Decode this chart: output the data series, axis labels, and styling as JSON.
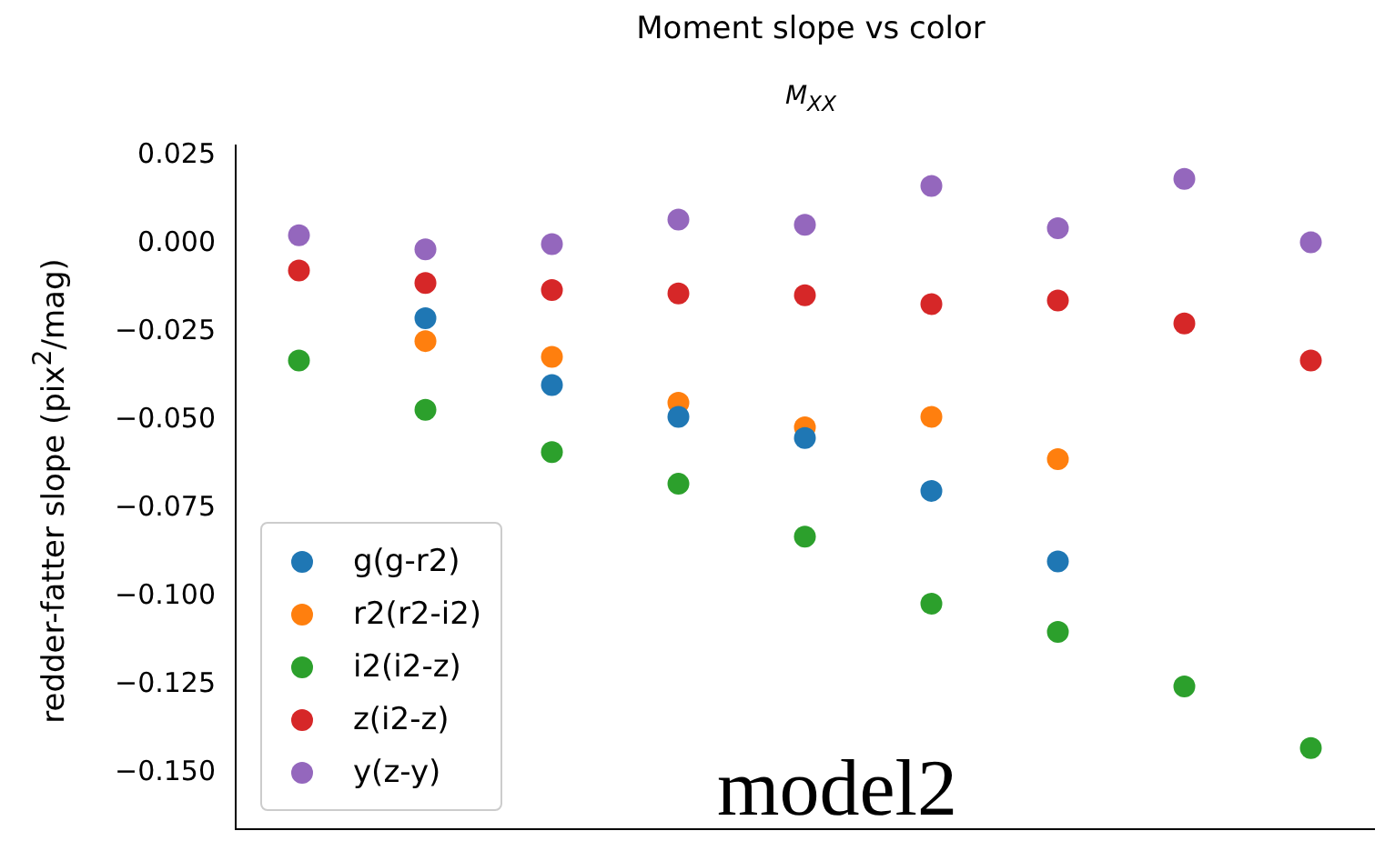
{
  "chart_data": {
    "type": "scatter",
    "title": "Moment slope vs color",
    "subtitle": "M$_{XX}$",
    "ylabel": "redder-fatter slope (pix$^{2}$/mag)",
    "categories": [
      null,
      null,
      null,
      null,
      null,
      null,
      null,
      null,
      null
    ],
    "series": [
      {
        "name": "g(g-r2)",
        "color": "#1f77b4",
        "values": [
          null,
          -0.021,
          -0.04,
          -0.049,
          -0.055,
          -0.07,
          -0.09,
          null,
          null
        ]
      },
      {
        "name": "r2(r2-i2)",
        "color": "#ff7f0e",
        "values": [
          null,
          -0.0275,
          -0.032,
          -0.045,
          -0.052,
          -0.049,
          -0.061,
          null,
          null
        ]
      },
      {
        "name": "i2(i2-z)",
        "color": "#2ca02c",
        "values": [
          -0.033,
          -0.047,
          -0.059,
          -0.068,
          -0.083,
          -0.102,
          -0.11,
          -0.1255,
          -0.143
        ]
      },
      {
        "name": "z(i2-z)",
        "color": "#d62728",
        "values": [
          -0.0075,
          -0.011,
          -0.013,
          -0.014,
          -0.0145,
          -0.017,
          -0.016,
          -0.0225,
          -0.033
        ]
      },
      {
        "name": "y(z-y)",
        "color": "#9467bd",
        "values": [
          0.0025,
          -0.0015,
          0.0,
          0.007,
          0.0055,
          0.0165,
          0.0045,
          0.0185,
          0.0005
        ]
      }
    ],
    "ylim": [
      -0.166,
      0.028
    ],
    "yticks": [
      0.025,
      {
        "value": 0.0,
        "label": "0.000"
      },
      -0.025,
      {
        "value": -0.05,
        "label": "−0.050"
      },
      -0.075,
      {
        "value": -0.1,
        "label": "−0.100"
      },
      -0.125,
      {
        "value": -0.15,
        "label": "−0.150"
      }
    ],
    "marker": "circle",
    "legend": "bottom left",
    "tick_labels": "y",
    "grid": false,
    "annotations": [
      "model2"
    ]
  }
}
